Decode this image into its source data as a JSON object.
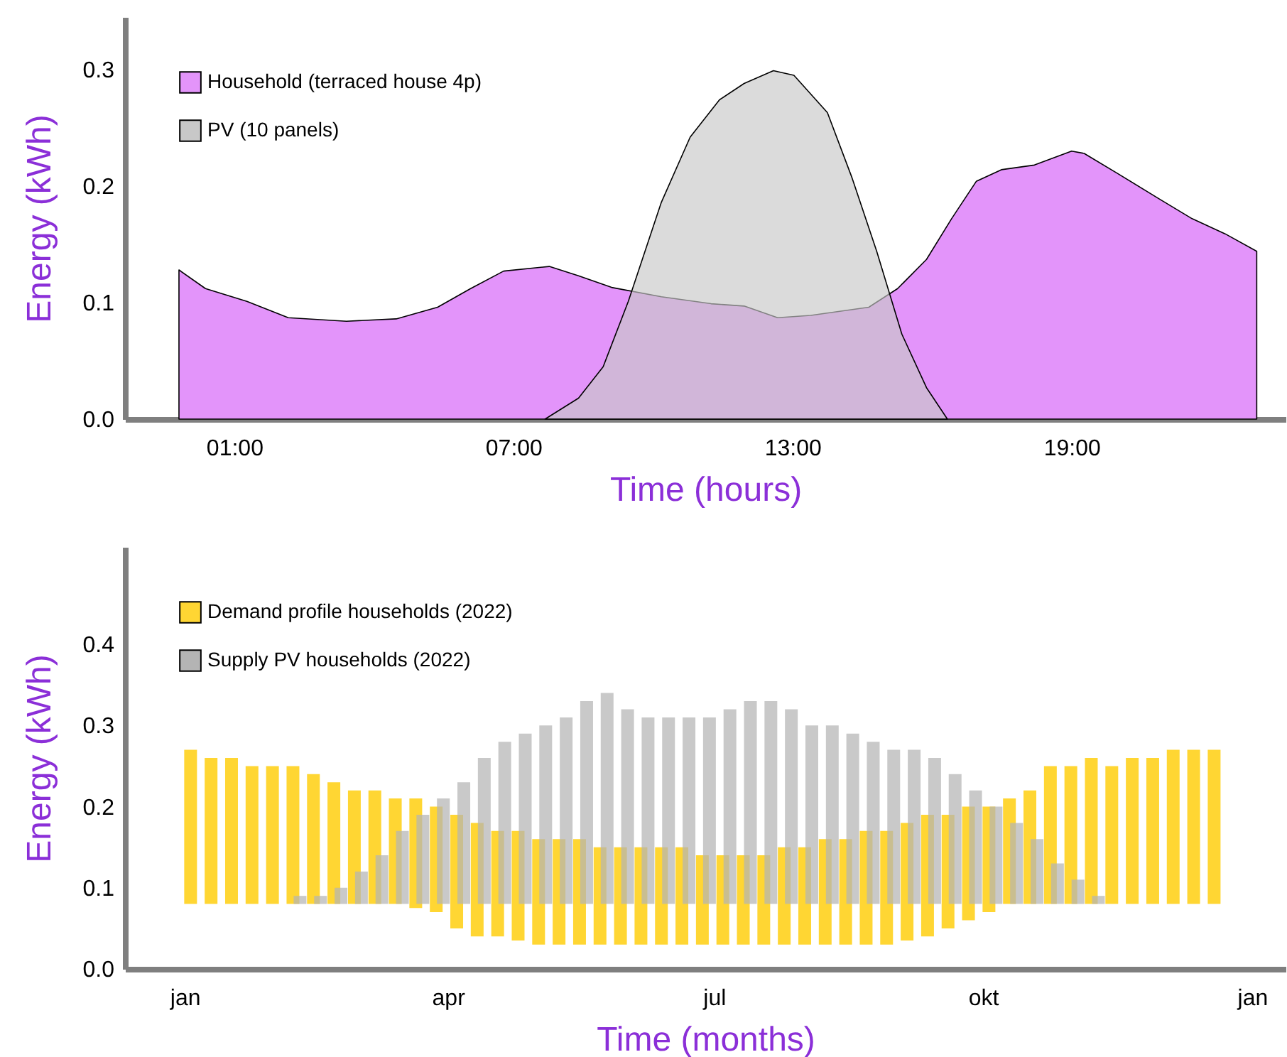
{
  "chart_data": [
    {
      "type": "area",
      "xlabel": "Time (hours)",
      "ylabel": "Energy (kWh)",
      "xlim": [
        -1.35,
        23.6
      ],
      "xticks": [
        {
          "value": 1,
          "label": "01:00"
        },
        {
          "value": 7,
          "label": "07:00"
        },
        {
          "value": 13,
          "label": "13:00"
        },
        {
          "value": 19,
          "label": "19:00"
        }
      ],
      "ylim": [
        0,
        0.345
      ],
      "yticks": [
        {
          "value": 0,
          "label": "0.0"
        },
        {
          "value": 0.1,
          "label": "0.1"
        },
        {
          "value": 0.2,
          "label": "0.2"
        },
        {
          "value": 0.3,
          "label": "0.3"
        }
      ],
      "legend": "top left",
      "grid": false,
      "series": [
        {
          "name": "Household (terraced house 4p)",
          "color": "#e394fa",
          "x": [
            -0.19,
            0.38,
            1.27,
            2.16,
            3.41,
            4.48,
            5.37,
            6.08,
            6.79,
            7.77,
            8.4,
            9.11,
            10.18,
            11.25,
            11.96,
            12.68,
            13.39,
            14.64,
            15.26,
            15.88,
            16.42,
            16.95,
            17.49,
            18.2,
            19.0,
            19.27,
            19.98,
            20.88,
            21.59,
            22.3,
            22.98
          ],
          "values": [
            0.128,
            0.112,
            0.101,
            0.087,
            0.084,
            0.086,
            0.096,
            0.112,
            0.127,
            0.131,
            0.123,
            0.113,
            0.105,
            0.099,
            0.097,
            0.087,
            0.089,
            0.096,
            0.112,
            0.137,
            0.172,
            0.204,
            0.214,
            0.218,
            0.23,
            0.228,
            0.211,
            0.189,
            0.172,
            0.159,
            0.144
          ]
        },
        {
          "name": "PV (10 panels)",
          "color": "#c8c8c8",
          "x": [
            7.68,
            8.4,
            8.93,
            9.47,
            10.18,
            10.8,
            11.43,
            11.96,
            12.59,
            13.03,
            13.75,
            14.28,
            14.81,
            15.35,
            15.88,
            16.33
          ],
          "values": [
            0,
            0.018,
            0.045,
            0.101,
            0.186,
            0.242,
            0.274,
            0.288,
            0.299,
            0.295,
            0.263,
            0.207,
            0.144,
            0.073,
            0.027,
            0
          ]
        }
      ]
    },
    {
      "type": "bar",
      "xlabel": "Time (months)",
      "ylabel": "Energy (kWh)",
      "xlim": [
        "2021-12-14",
        "2023-01-10"
      ],
      "xticks": [
        {
          "value": "2022-01-01",
          "label": "jan"
        },
        {
          "value": "2022-04-01",
          "label": "apr"
        },
        {
          "value": "2022-07-01",
          "label": "jul"
        },
        {
          "value": "2022-10-01",
          "label": "okt"
        },
        {
          "value": "2023-01-01",
          "label": "jan"
        }
      ],
      "ylim": [
        0,
        0.52
      ],
      "yticks": [
        {
          "value": 0,
          "label": "0.0"
        },
        {
          "value": 0.1,
          "label": "0.1"
        },
        {
          "value": 0.2,
          "label": "0.2"
        },
        {
          "value": 0.3,
          "label": "0.3"
        },
        {
          "value": 0.4,
          "label": "0.4"
        }
      ],
      "legend": "top left",
      "grid": false,
      "x": [
        "2022-01-03",
        "2022-01-10",
        "2022-01-17",
        "2022-01-24",
        "2022-01-31",
        "2022-02-07",
        "2022-02-14",
        "2022-02-21",
        "2022-02-28",
        "2022-03-07",
        "2022-03-14",
        "2022-03-21",
        "2022-03-28",
        "2022-04-04",
        "2022-04-11",
        "2022-04-18",
        "2022-04-25",
        "2022-05-02",
        "2022-05-09",
        "2022-05-16",
        "2022-05-23",
        "2022-05-30",
        "2022-06-06",
        "2022-06-13",
        "2022-06-20",
        "2022-06-27",
        "2022-07-04",
        "2022-07-11",
        "2022-07-18",
        "2022-07-25",
        "2022-08-01",
        "2022-08-08",
        "2022-08-15",
        "2022-08-22",
        "2022-08-29",
        "2022-09-05",
        "2022-09-12",
        "2022-09-19",
        "2022-09-26",
        "2022-10-03",
        "2022-10-10",
        "2022-10-17",
        "2022-10-24",
        "2022-10-31",
        "2022-11-07",
        "2022-11-14",
        "2022-11-21",
        "2022-11-28",
        "2022-12-05",
        "2022-12-12",
        "2022-12-19"
      ],
      "series": [
        {
          "name": "Demand profile households (2022)",
          "color": "#ffd633",
          "base": [
            0.08,
            0.08,
            0.08,
            0.08,
            0.08,
            0.08,
            0.08,
            0.08,
            0.08,
            0.08,
            0.08,
            0.075,
            0.07,
            0.05,
            0.04,
            0.04,
            0.035,
            0.03,
            0.03,
            0.03,
            0.03,
            0.03,
            0.03,
            0.03,
            0.03,
            0.03,
            0.03,
            0.03,
            0.03,
            0.03,
            0.03,
            0.03,
            0.03,
            0.03,
            0.03,
            0.035,
            0.04,
            0.05,
            0.06,
            0.07,
            0.08,
            0.08,
            0.08,
            0.08,
            0.08,
            0.08,
            0.08,
            0.08,
            0.08,
            0.08,
            0.08
          ],
          "values": [
            0.19,
            0.18,
            0.18,
            0.17,
            0.17,
            0.17,
            0.16,
            0.15,
            0.14,
            0.14,
            0.13,
            0.135,
            0.13,
            0.14,
            0.14,
            0.13,
            0.135,
            0.13,
            0.13,
            0.13,
            0.12,
            0.12,
            0.12,
            0.12,
            0.12,
            0.11,
            0.11,
            0.11,
            0.11,
            0.12,
            0.12,
            0.13,
            0.13,
            0.14,
            0.14,
            0.145,
            0.15,
            0.14,
            0.14,
            0.13,
            0.13,
            0.14,
            0.17,
            0.17,
            0.18,
            0.17,
            0.18,
            0.18,
            0.19,
            0.19,
            0.19
          ]
        },
        {
          "name": "Supply PV households (2022)",
          "color": "#b4b4b4",
          "base": [
            null,
            null,
            null,
            null,
            null,
            0.08,
            0.08,
            0.08,
            0.08,
            0.08,
            0.08,
            0.08,
            0.08,
            0.08,
            0.08,
            0.08,
            0.08,
            0.08,
            0.08,
            0.08,
            0.08,
            0.08,
            0.08,
            0.08,
            0.08,
            0.08,
            0.08,
            0.08,
            0.08,
            0.08,
            0.08,
            0.08,
            0.08,
            0.08,
            0.08,
            0.08,
            0.08,
            0.08,
            0.08,
            0.08,
            0.08,
            0.08,
            0.08,
            0.08,
            0.08,
            null,
            null,
            null,
            null,
            null,
            null
          ],
          "values": [
            null,
            null,
            null,
            null,
            null,
            0.01,
            0.01,
            0.02,
            0.04,
            0.06,
            0.09,
            0.11,
            0.13,
            0.15,
            0.18,
            0.2,
            0.21,
            0.22,
            0.23,
            0.25,
            0.26,
            0.24,
            0.23,
            0.23,
            0.23,
            0.23,
            0.24,
            0.25,
            0.25,
            0.24,
            0.22,
            0.22,
            0.21,
            0.2,
            0.19,
            0.19,
            0.18,
            0.16,
            0.14,
            0.12,
            0.1,
            0.08,
            0.05,
            0.03,
            0.01,
            null,
            null,
            null,
            null,
            null,
            null
          ]
        }
      ]
    }
  ]
}
